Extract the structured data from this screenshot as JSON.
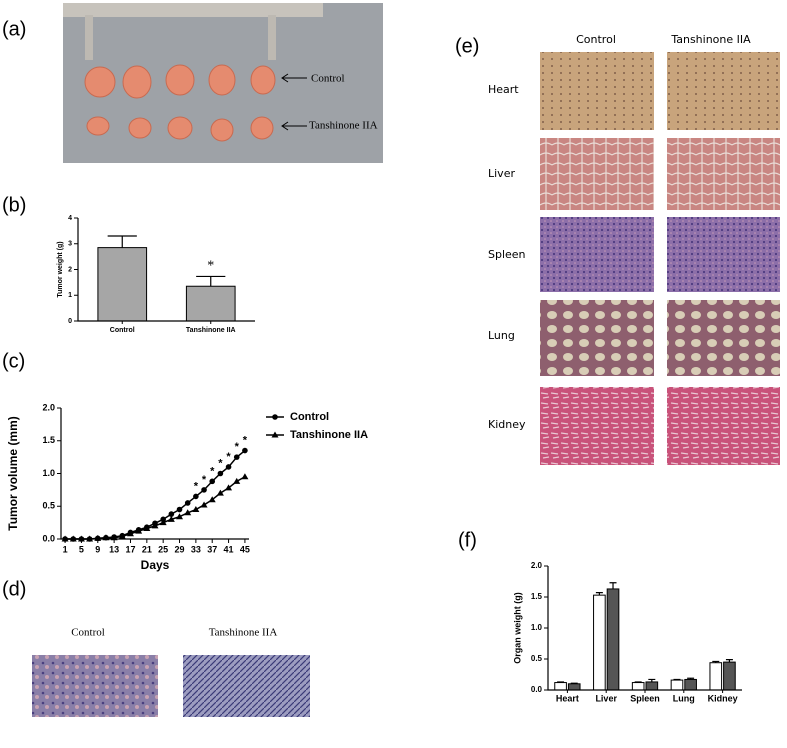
{
  "panel_labels": [
    "(a)",
    "(b)",
    "(c)",
    "(d)",
    "(e)",
    "(f)"
  ],
  "photo_a": {
    "labels": [
      "Control",
      "Tanshinone IIA"
    ]
  },
  "photo_d": {
    "labels": [
      "Control",
      "Tanshinone IIA"
    ]
  },
  "histology_e": {
    "columns": [
      "Control",
      "Tanshinone IIA"
    ],
    "rows": [
      "Heart",
      "Liver",
      "Spleen",
      "Lung",
      "Kidney"
    ]
  },
  "chart_data": [
    {
      "type": "bar",
      "y_label": "Tumor weight (g)",
      "categories": [
        "Control",
        "Tanshinone IIA"
      ],
      "values": [
        2.85,
        1.35
      ],
      "errors": [
        0.45,
        0.38
      ],
      "color": "#a6a6a6",
      "ylim": [
        0,
        4
      ],
      "yticks": [
        0,
        1,
        2,
        3,
        4
      ],
      "annotations": [
        {
          "text": "*",
          "x": "Tanshinone IIA"
        }
      ]
    },
    {
      "type": "line",
      "x_label": "Days",
      "y_label": "Tumor volume (mm)",
      "x": [
        1,
        3,
        5,
        7,
        9,
        11,
        13,
        15,
        17,
        19,
        21,
        23,
        25,
        27,
        29,
        31,
        33,
        35,
        37,
        39,
        41,
        43,
        45
      ],
      "series": [
        {
          "name": "Control",
          "color": "#000000",
          "marker": "circle",
          "values": [
            0,
            0,
            0,
            0,
            0.01,
            0.02,
            0.03,
            0.05,
            0.1,
            0.14,
            0.18,
            0.24,
            0.3,
            0.38,
            0.45,
            0.55,
            0.65,
            0.75,
            0.88,
            1.0,
            1.1,
            1.25,
            1.35
          ]
        },
        {
          "name": "Tanshinone IIA",
          "color": "#000000",
          "marker": "triangle",
          "values": [
            0,
            0,
            0,
            0,
            0.01,
            0.02,
            0.02,
            0.04,
            0.08,
            0.12,
            0.16,
            0.2,
            0.25,
            0.3,
            0.34,
            0.4,
            0.45,
            0.52,
            0.6,
            0.7,
            0.78,
            0.88,
            0.95
          ]
        }
      ],
      "xlim": [
        0,
        46
      ],
      "xticks": [
        1,
        5,
        9,
        13,
        17,
        21,
        25,
        29,
        33,
        37,
        41,
        45
      ],
      "ylim": [
        0,
        2
      ],
      "yticks": [
        {
          "value": 0,
          "label": "0.0"
        },
        {
          "value": 0.5,
          "label": "0.5"
        },
        {
          "value": 1,
          "label": "1.0"
        },
        {
          "value": 1.5,
          "label": "1.5"
        },
        {
          "value": 2,
          "label": "2.0"
        }
      ],
      "annotations": [
        {
          "text": "*",
          "x": 33
        },
        {
          "text": "*",
          "x": 35
        },
        {
          "text": "*",
          "x": 37
        },
        {
          "text": "*",
          "x": 39
        },
        {
          "text": "*",
          "x": 41
        },
        {
          "text": "*",
          "x": 43
        },
        {
          "text": "*",
          "x": 45
        }
      ]
    },
    {
      "type": "bar",
      "y_label": "Organ weight (g)",
      "categories": [
        "Heart",
        "Liver",
        "Spleen",
        "Lung",
        "Kidney"
      ],
      "series": [
        {
          "color": "#ffffff",
          "values": [
            0.12,
            1.53,
            0.12,
            0.16,
            0.44
          ],
          "errors": [
            0.01,
            0.04,
            0.01,
            0.01,
            0.02
          ]
        },
        {
          "color": "#555555",
          "values": [
            0.1,
            1.63,
            0.13,
            0.17,
            0.45
          ],
          "errors": [
            0.01,
            0.1,
            0.04,
            0.02,
            0.04
          ]
        }
      ],
      "ylim": [
        0,
        2
      ],
      "yticks": [
        {
          "value": 0,
          "label": "0.0"
        },
        {
          "value": 0.5,
          "label": "0.5"
        },
        {
          "value": 1,
          "label": "1.0"
        },
        {
          "value": 1.5,
          "label": "1.5"
        },
        {
          "value": 2,
          "label": "2.0"
        }
      ]
    }
  ]
}
